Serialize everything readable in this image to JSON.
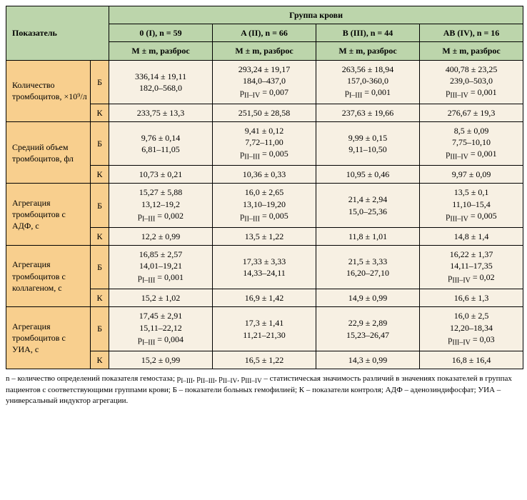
{
  "header": {
    "pokazatel": "Показатель",
    "gruppa_krovi": "Группа крови",
    "groups": [
      "0 (I), n = 59",
      "A (II), n = 66",
      "B (III), n = 44",
      "AB (IV), n = 16"
    ],
    "mm": "M ± m, разброс"
  },
  "rowlabels": {
    "b": "Б",
    "k": "К"
  },
  "rows": [
    {
      "label": "Количество тромбоцитов, ×10⁹/л",
      "b": [
        [
          "336,14 ± 19,11",
          "182,0–568,0"
        ],
        [
          "293,24 ± 19,17",
          "184,0–437,0",
          "p<sub>II–IV</sub> = 0,007"
        ],
        [
          "263,56 ± 18,94",
          "157,0-360,0",
          "p<sub>I–III</sub> = 0,001"
        ],
        [
          "400,78 ± 23,25",
          "239,0–503,0",
          "p<sub>III–IV</sub> = 0,001"
        ]
      ],
      "k": [
        "233,75 ± 13,3",
        "251,50 ± 28,58",
        "237,63 ± 19,66",
        "276,67 ± 19,3"
      ]
    },
    {
      "label": "Средний объем тромбоцитов, фл",
      "b": [
        [
          "9,76 ± 0,14",
          "6,81–11,05"
        ],
        [
          "9,41 ± 0,12",
          "7,72–11,00",
          "p<sub>II–III</sub> = 0,005"
        ],
        [
          "9,99 ± 0,15",
          "9,11–10,50"
        ],
        [
          "8,5 ± 0,09",
          "7,75–10,10",
          "p<sub>III–IV</sub> = 0,001"
        ]
      ],
      "k": [
        "10,73 ± 0,21",
        "10,36 ± 0,33",
        "10,95 ± 0,46",
        "9,97 ± 0,09"
      ]
    },
    {
      "label": "Агрегация тромбоцитов с АДФ, с",
      "b": [
        [
          "15,27 ± 5,88",
          "13,12–19,2",
          "p<sub>I–III</sub> = 0,002"
        ],
        [
          "16,0 ± 2,65",
          "13,10–19,20",
          "p<sub>II–III</sub> = 0,005"
        ],
        [
          "21,4 ± 2,94",
          "15,0–25,36"
        ],
        [
          "13,5 ± 0,1",
          "11,10–15,4",
          "p<sub>III–IV</sub> = 0,005"
        ]
      ],
      "k": [
        "12,2 ± 0,99",
        "13,5 ± 1,22",
        "11,8 ± 1,01",
        "14,8 ± 1,4"
      ]
    },
    {
      "label": "Агрегация тромбоцитов с коллагеном, с",
      "b": [
        [
          "16,85 ± 2,57",
          "14,01–19,21",
          "p<sub>I–III</sub> = 0,001"
        ],
        [
          "17,33 ± 3,33",
          "14,33–24,11"
        ],
        [
          "21,5 ± 3,33",
          "16,20–27,10"
        ],
        [
          "16,22 ± 1,37",
          "14,11–17,35",
          "p<sub>III–IV</sub> = 0,02"
        ]
      ],
      "k": [
        "15,2 ± 1,02",
        "16,9 ± 1,42",
        "14,9 ± 0,99",
        "16,6 ± 1,3"
      ]
    },
    {
      "label": "Агрегация тромбоцитов с УИА, с",
      "b": [
        [
          "17,45 ± 2,91",
          "15,11–22,12",
          "p<sub>I–III</sub> = 0,004"
        ],
        [
          "17,3 ± 1,41",
          "11,21–21,30"
        ],
        [
          "22,9 ± 2,89",
          "15,23–26,47"
        ],
        [
          "16,0 ± 2,5",
          "12,20–18,34",
          "p<sub>III–IV</sub> = 0,03"
        ]
      ],
      "k": [
        "15,2 ± 0,99",
        "16,5 ± 1,22",
        "14,3 ± 0,99",
        "16,8 ± 16,4"
      ]
    }
  ],
  "footnote": "n – количество определений показателя гемостаза; p<sub>I–III</sub>, p<sub>II–III</sub>, p<sub>II–IV</sub>, p<sub>III–IV</sub> – статистическая значимость различий в значениях показателей в группах пациентов с соответствующими группами крови; Б – показатели больных гемофилией; К – показатели контроля; АДФ – аденозиндифосфат; УИА – универсальный индуктор агрегации.",
  "colors": {
    "header_bg": "#bcd5ab",
    "label_bg": "#f8cf8e",
    "cell_bg": "#f7f0e3",
    "border": "#000000"
  }
}
